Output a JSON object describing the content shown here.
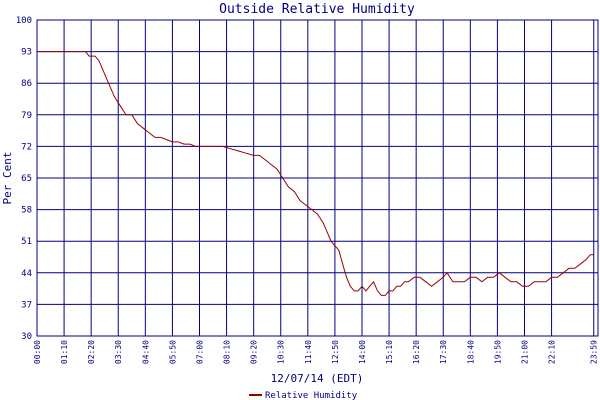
{
  "chart_data": {
    "type": "line",
    "title": "Outside Relative Humidity",
    "xlabel": "12/07/14 (EDT)",
    "ylabel": "Per Cent",
    "ylim": [
      30,
      100
    ],
    "yticks": [
      "30",
      "37",
      "44",
      "51",
      "58",
      "65",
      "72",
      "79",
      "86",
      "93",
      "100"
    ],
    "xlim": [
      0,
      1450
    ],
    "xticks": [
      {
        "minute": 0,
        "label": "00:00"
      },
      {
        "minute": 70,
        "label": "01:10"
      },
      {
        "minute": 140,
        "label": "02:20"
      },
      {
        "minute": 210,
        "label": "03:30"
      },
      {
        "minute": 280,
        "label": "04:40"
      },
      {
        "minute": 350,
        "label": "05:50"
      },
      {
        "minute": 420,
        "label": "07:00"
      },
      {
        "minute": 490,
        "label": "08:10"
      },
      {
        "minute": 560,
        "label": "09:20"
      },
      {
        "minute": 630,
        "label": "10:30"
      },
      {
        "minute": 700,
        "label": "11:40"
      },
      {
        "minute": 770,
        "label": "12:50"
      },
      {
        "minute": 840,
        "label": "14:00"
      },
      {
        "minute": 910,
        "label": "15:10"
      },
      {
        "minute": 980,
        "label": "16:20"
      },
      {
        "minute": 1050,
        "label": "17:30"
      },
      {
        "minute": 1120,
        "label": "18:40"
      },
      {
        "minute": 1190,
        "label": "19:50"
      },
      {
        "minute": 1260,
        "label": "21:00"
      },
      {
        "minute": 1330,
        "label": "22:10"
      },
      {
        "minute": 1439,
        "label": "23:59"
      }
    ],
    "grid": true,
    "legend_position": "bottom-center",
    "series": [
      {
        "name": "Relative Humidity",
        "color": "#990000",
        "x": [
          0,
          20,
          40,
          60,
          80,
          100,
          115,
          125,
          135,
          150,
          160,
          170,
          180,
          190,
          200,
          215,
          230,
          245,
          260,
          275,
          290,
          305,
          320,
          335,
          350,
          365,
          380,
          395,
          410,
          425,
          440,
          460,
          480,
          500,
          520,
          540,
          560,
          575,
          590,
          605,
          620,
          635,
          650,
          665,
          680,
          695,
          710,
          725,
          740,
          750,
          760,
          770,
          780,
          790,
          800,
          810,
          820,
          830,
          840,
          850,
          860,
          870,
          880,
          890,
          900,
          910,
          920,
          930,
          940,
          950,
          960,
          975,
          990,
          1005,
          1020,
          1035,
          1050,
          1060,
          1075,
          1090,
          1105,
          1120,
          1135,
          1150,
          1165,
          1180,
          1195,
          1210,
          1225,
          1240,
          1255,
          1270,
          1285,
          1300,
          1315,
          1330,
          1345,
          1360,
          1375,
          1390,
          1405,
          1420,
          1430,
          1439
        ],
        "y": [
          93,
          93,
          93,
          93,
          93,
          93,
          93,
          93,
          92,
          92,
          91,
          89,
          87,
          85,
          83,
          81,
          79,
          79,
          77,
          76,
          75,
          74,
          74,
          73.5,
          73,
          73,
          72.5,
          72.5,
          72,
          72,
          72,
          72,
          72,
          71.5,
          71,
          70.5,
          70,
          70,
          69,
          68,
          67,
          65,
          63,
          62,
          60,
          59,
          58,
          57,
          55,
          53,
          51,
          50,
          49,
          46,
          43,
          41,
          40,
          40,
          41,
          40,
          41,
          42,
          40,
          39,
          39,
          40,
          40,
          41,
          41,
          42,
          42,
          43,
          43,
          42,
          41,
          42,
          43,
          44,
          42,
          42,
          42,
          43,
          43,
          42,
          43,
          43,
          44,
          43,
          42,
          42,
          41,
          41,
          42,
          42,
          42,
          43,
          43,
          44,
          45,
          45,
          46,
          47,
          48,
          48
        ]
      }
    ]
  }
}
